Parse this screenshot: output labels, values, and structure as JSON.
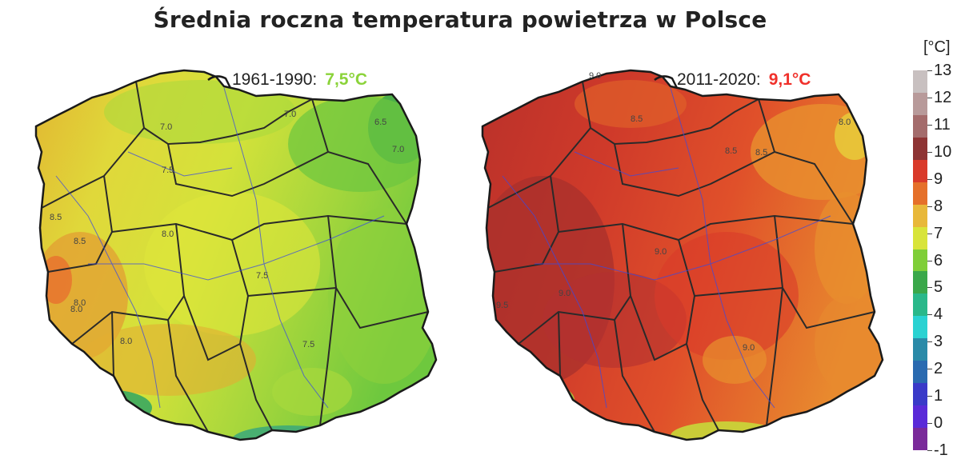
{
  "title": "Średnia roczna temperatura powietrza w Polsce",
  "maps": [
    {
      "period": "1961-1990:",
      "mean_temp": "7,5°C",
      "mean_temp_color": "#8bd33a",
      "isotherm_labels": [
        "7.0",
        "7.0",
        "7.5",
        "8.0",
        "8.0",
        "8.5",
        "8.5",
        "7.5",
        "7.5",
        "8.0",
        "6.5",
        "7.0",
        "8.0"
      ]
    },
    {
      "period": "2011-2020:",
      "mean_temp": "9,1°C",
      "mean_temp_color": "#f0302a",
      "isotherm_labels": [
        "9.0",
        "8.5",
        "8.5",
        "8.0",
        "8.5",
        "9.5",
        "9.0",
        "9.0",
        "9.0"
      ]
    }
  ],
  "legend": {
    "unit": "[°C]",
    "levels": [
      "13",
      "12",
      "11",
      "10",
      "9",
      "8",
      "7",
      "6",
      "5",
      "4",
      "3",
      "2",
      "1",
      "0",
      "-1"
    ],
    "colors": [
      "#c8c0c0",
      "#b89a9a",
      "#a46c6c",
      "#8e3434",
      "#d93a2a",
      "#e5702a",
      "#e8b83a",
      "#d8e43a",
      "#7fce38",
      "#3aa84a",
      "#2ab88a",
      "#2ad2d2",
      "#2a8aa8",
      "#2a6ab0",
      "#3a3ac8",
      "#5a2ad8",
      "#7a2a9a"
    ]
  }
}
